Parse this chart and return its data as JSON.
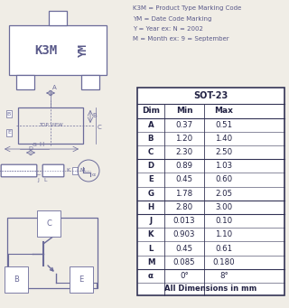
{
  "bg_color": "#f0ede6",
  "text_color": "#5a5a8a",
  "line_color": "#6b6b9a",
  "table_border": "#333355",
  "table_title": "SOT-23",
  "table_headers": [
    "Dim",
    "Min",
    "Max"
  ],
  "table_rows": [
    [
      "A",
      "0.37",
      "0.51"
    ],
    [
      "B",
      "1.20",
      "1.40"
    ],
    [
      "C",
      "2.30",
      "2.50"
    ],
    [
      "D",
      "0.89",
      "1.03"
    ],
    [
      "E",
      "0.45",
      "0.60"
    ],
    [
      "G",
      "1.78",
      "2.05"
    ],
    [
      "H",
      "2.80",
      "3.00"
    ],
    [
      "J",
      "0.013",
      "0.10"
    ],
    [
      "K",
      "0.903",
      "1.10"
    ],
    [
      "L",
      "0.45",
      "0.61"
    ],
    [
      "M",
      "0.085",
      "0.180"
    ],
    [
      "α",
      "0°",
      "8°"
    ]
  ],
  "table_footer": "All Dimensions in mm",
  "marking_lines": [
    "K3M = Product Type Marking Code",
    "YM = Date Code Marking",
    "Y = Year ex: N = 2002",
    "M = Month ex: 9 = September"
  ],
  "package_label": "K3M",
  "date_label": "YM",
  "divider_rows": [
    2,
    5,
    6,
    10
  ]
}
